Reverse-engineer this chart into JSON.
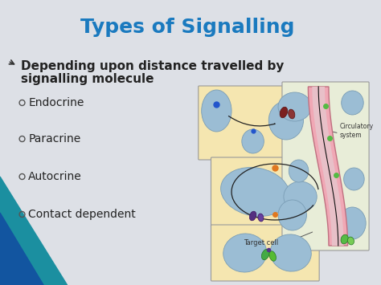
{
  "title": "Types of Signalling",
  "title_color": "#1a7abf",
  "title_fontsize": 18,
  "bg_color": "#e8eaed",
  "bullet_main_line1": "Depending upon distance travelled by",
  "bullet_main_line2": "signalling molecule",
  "bullet_main_fontsize": 11,
  "bullet_main_color": "#222222",
  "sub_bullets": [
    "Endocrine",
    "Paracrine",
    "Autocrine",
    "Contact dependent"
  ],
  "sub_bullet_fontsize": 10,
  "sub_bullet_color": "#222222",
  "slide_bg": "#dde0e6",
  "bottom_left_color1": "#1b8fa0",
  "bottom_left_color2": "#1255a0",
  "diagram_bg": "#f5e6b0",
  "cell_color": "#9bbdd4",
  "circulatory_pink": "#f0a8b5",
  "circulatory_pink_inner": "#e8c0c8",
  "vessel_outline": "#c07080",
  "target_cell_label": "Target cell",
  "circulatory_label": "Circulatory\nsystem"
}
